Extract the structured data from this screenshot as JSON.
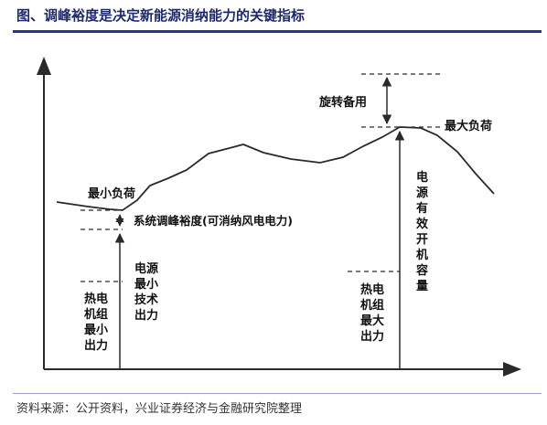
{
  "header": {
    "title": "图、调峰裕度是决定新能源消纳能力的关键指标"
  },
  "diagram": {
    "min_load": "最小负荷",
    "regulation_margin": "系统调峰裕度(可消纳风电电力)",
    "rotating_reserve": "旋转备用",
    "max_load": "最大负荷",
    "source_min_output": [
      "电源",
      "最小",
      "技术",
      "出力"
    ],
    "thermal_min_output": [
      "热电",
      "机组",
      "最小",
      "出力"
    ],
    "source_capacity": [
      "电",
      "源",
      "有",
      "效",
      "开",
      "机",
      "容",
      "量"
    ],
    "thermal_max_output": [
      "热电",
      "机组",
      "最大",
      "出力"
    ]
  },
  "footer": {
    "source": "资料来源：公开资料，兴业证券经济与金融研究院整理"
  },
  "colors": {
    "title": "#1f2a6b",
    "title_rule": "#1f3a8a",
    "lines": "#2a2a2a"
  }
}
